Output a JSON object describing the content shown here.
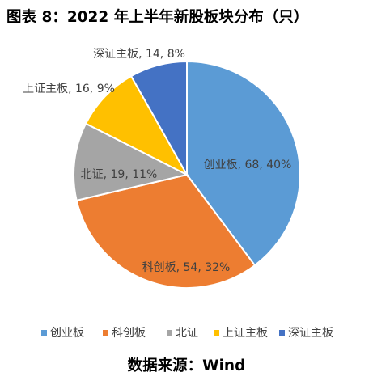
{
  "title": "图表 8：2022 年上半年新股板块分布（只）",
  "source": "数据来源：Wind",
  "chart_data": {
    "type": "pie",
    "labels": [
      "创业板",
      "科创板",
      "北证",
      "上证主板",
      "深证主板"
    ],
    "values": [
      68,
      54,
      19,
      16,
      14
    ],
    "percents": [
      "40%",
      "32%",
      "11%",
      "9%",
      "8%"
    ],
    "colors": [
      "#5b9bd5",
      "#ed7d31",
      "#a5a5a5",
      "#ffc000",
      "#4472c4"
    ],
    "data_labels": [
      "创业板, 68, 40%",
      "科创板, 54, 32%",
      "北证, 19, 11%",
      "上证主板, 16, 9%",
      "深证主板, 14, 8%"
    ],
    "legend_position": "bottom"
  }
}
